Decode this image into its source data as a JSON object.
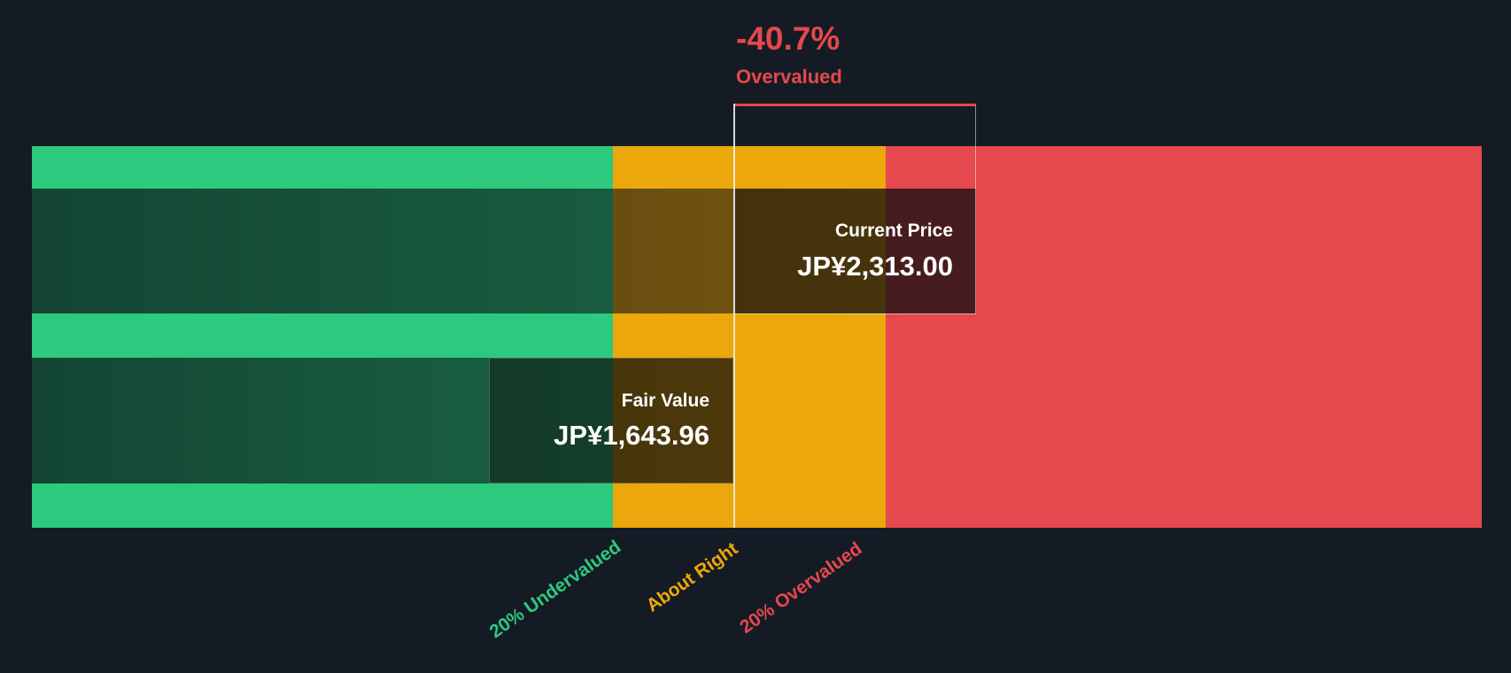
{
  "background": "#151b24",
  "colors": {
    "undervalued_green": "#2dc97e",
    "about_right_amber": "#eba70b",
    "overvalued_red": "#e5484d",
    "text_white": "#ffffff"
  },
  "annotation": {
    "delta": "-40.7%",
    "status": "Overvalued"
  },
  "current_price": {
    "label": "Current Price",
    "value": "JP¥2,313.00"
  },
  "fair_value": {
    "label": "Fair Value",
    "value": "JP¥1,643.96"
  },
  "axis": {
    "undervalued": "20% Undervalued",
    "about_right": "About Right",
    "overvalued": "20% Overvalued"
  },
  "chart_data": {
    "type": "bar",
    "currency": "JP¥",
    "current_price": 2313.0,
    "fair_value": 1643.96,
    "discount_pct": -40.7,
    "valuation_status": "Overvalued",
    "zones": [
      {
        "label": "20% Undervalued",
        "color": "#2dc97e",
        "range_pct_of_fair_value": [
          0,
          80
        ]
      },
      {
        "label": "About Right",
        "color": "#eba70b",
        "range_pct_of_fair_value": [
          80,
          120
        ]
      },
      {
        "label": "20% Overvalued",
        "color": "#e5484d",
        "range_pct_of_fair_value": [
          120,
          null
        ]
      }
    ],
    "bars": [
      {
        "name": "Current Price",
        "value": 2313.0
      },
      {
        "name": "Fair Value",
        "value": 1643.96
      }
    ],
    "legend_position": "none",
    "grid": false
  }
}
